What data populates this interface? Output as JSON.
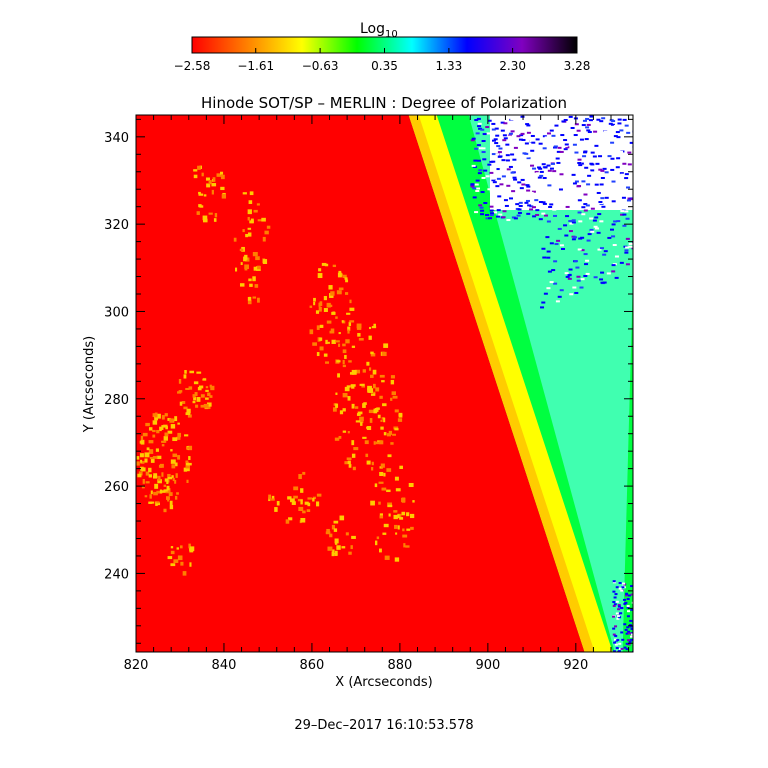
{
  "chart_data": {
    "type": "heatmap",
    "title": "Hinode SOT/SP – MERLIN : Degree of Polarization",
    "xlabel": "X (Arcseconds)",
    "ylabel": "Y (Arcseconds)",
    "xlim": [
      820,
      933
    ],
    "ylim": [
      222,
      345
    ],
    "x_ticks": [
      820,
      840,
      860,
      880,
      900,
      920
    ],
    "y_ticks": [
      240,
      260,
      280,
      300,
      320,
      340
    ],
    "x_tick_labels": [
      "820",
      "840",
      "860",
      "880",
      "900",
      "920"
    ],
    "y_tick_labels": [
      "240",
      "260",
      "280",
      "300",
      "320",
      "340"
    ],
    "colorbar": {
      "label_base": "Log",
      "label_sub": "10",
      "range": [
        -2.58,
        3.28
      ],
      "ticks": [
        -2.58,
        -1.61,
        -0.63,
        0.35,
        1.33,
        2.3,
        3.28
      ],
      "tick_labels": [
        "−2.58",
        "−1.61",
        "−0.63",
        "0.35",
        "1.33",
        "2.30",
        "3.28"
      ],
      "colors": [
        "#ff0000",
        "#ff8000",
        "#ffff00",
        "#00ff00",
        "#00ffff",
        "#0000ff",
        "#8000c0",
        "#000000"
      ]
    },
    "limb": {
      "x_at_top": 882,
      "x_at_bottom": 922,
      "disk_value": -2.58,
      "offlimb_value": 0.3
    },
    "grid": false,
    "timestamp": "29–Dec–2017 16:10:53.578"
  }
}
